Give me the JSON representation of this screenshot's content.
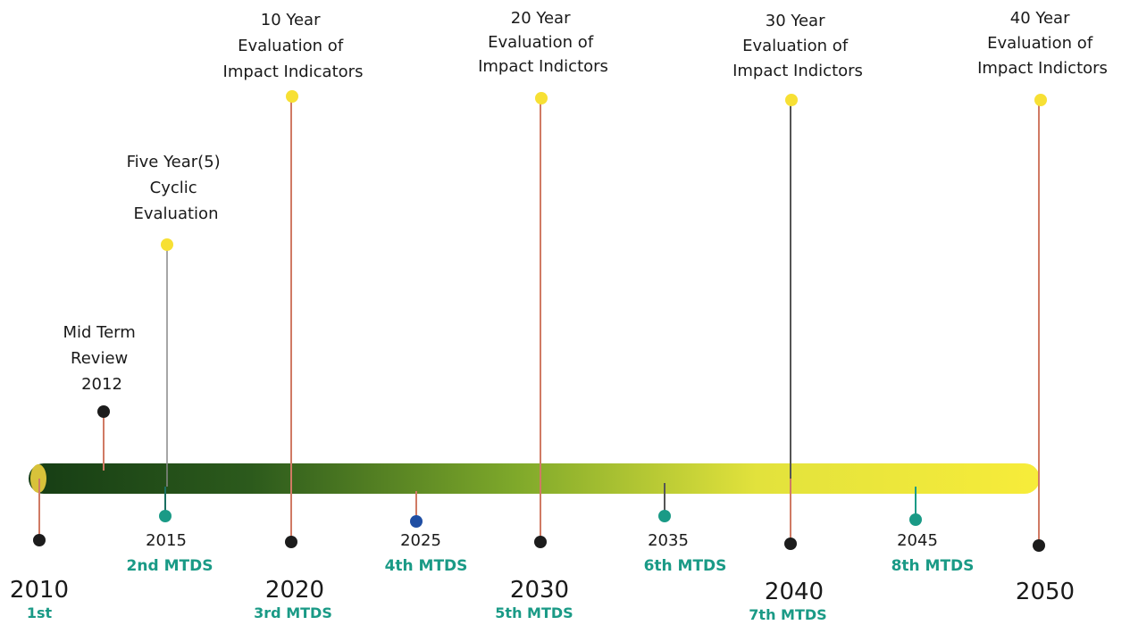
{
  "colors": {
    "teal": "#1a9a86",
    "stem": "#d07a64",
    "dark_stem": "#555555",
    "yellow_dot": "#f7e034",
    "black_dot": "#1c1c1c",
    "blue_dot": "#1f4ea3",
    "bar_start": "#163d14",
    "bar_mid": "#7ea82a",
    "bar_end": "#f7ec3a"
  },
  "timeline": {
    "ticks": [
      {
        "year": "2010",
        "label": "1st"
      },
      {
        "year": "2020",
        "label": "3rd MTDS"
      },
      {
        "year": "2030",
        "label": "5th MTDS"
      },
      {
        "year": "2040",
        "label": "7th MTDS"
      },
      {
        "year": "2050",
        "label": ""
      }
    ],
    "mtds": [
      {
        "year": "2015",
        "label": "2nd MTDS",
        "dot": "teal"
      },
      {
        "year": "2025",
        "label": "4th MTDS",
        "dot": "blue"
      },
      {
        "year": "2035",
        "label": "6th MTDS",
        "dot": "teal"
      },
      {
        "year": "2045",
        "label": "8th MTDS",
        "dot": "teal"
      }
    ],
    "mid_term": {
      "lines": [
        "Mid Term",
        "Review",
        "2012"
      ]
    },
    "five_year": {
      "lines": [
        "Five Year(5)",
        "Cyclic",
        "Evaluation"
      ]
    },
    "evaluations": [
      {
        "lines": [
          "10 Year",
          "Evaluation of",
          "Impact Indicators"
        ]
      },
      {
        "lines": [
          "20 Year",
          "Evaluation of",
          "Impact Indictors"
        ]
      },
      {
        "lines": [
          "30 Year",
          "Evaluation of",
          "Impact Indictors"
        ]
      },
      {
        "lines": [
          "40 Year",
          "Evaluation of",
          "Impact Indictors"
        ]
      }
    ]
  }
}
